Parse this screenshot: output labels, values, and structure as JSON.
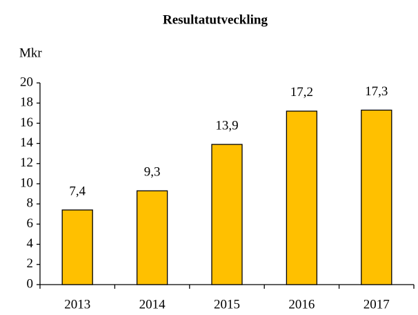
{
  "chart_data": {
    "type": "bar",
    "title": "Resultatutveckling",
    "y_label": "Mkr",
    "categories": [
      "2013",
      "2014",
      "2015",
      "2016",
      "2017"
    ],
    "values": [
      7.4,
      9.3,
      13.9,
      17.2,
      17.3
    ],
    "value_labels": [
      "7,4",
      "9,3",
      "13,9",
      "17,2",
      "17,3"
    ],
    "color": "#FFC000",
    "ylim": [
      0,
      20
    ],
    "yticks": [
      0,
      2,
      4,
      6,
      8,
      10,
      12,
      14,
      16,
      18,
      20
    ],
    "grid": false
  }
}
